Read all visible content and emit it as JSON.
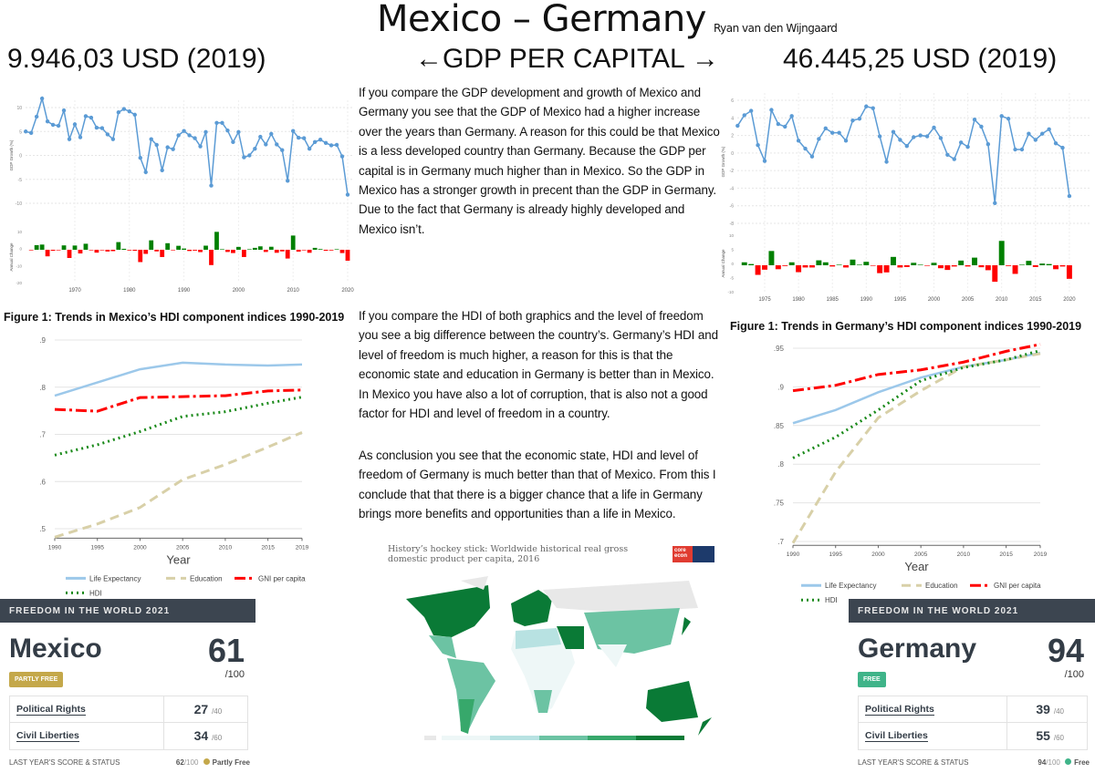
{
  "header": {
    "title": "Mexico – Germany",
    "author": "Ryan van den Wijngaard",
    "gdp_mexico": "9.946,03 USD (2019)",
    "gdp_label": "←GDP PER CAPITAL →",
    "gdp_germany": "46.445,25 USD (2019)"
  },
  "text": {
    "p1": "If you compare the GDP development and growth of Mexico and Germany you see that the GDP of Mexico had a higher increase over the years than Germany. A reason for this could be that Mexico is a less developed country than Germany. Because the GDP per capital is in Germany much higher than in Mexico. So the GDP in Mexico has a stronger growth in precent than the GDP in Germany.  Due to the fact that Germany is already highly developed and Mexico isn’t.",
    "p2": "If you compare the HDI of both graphics and the level of freedom you see a big difference between the country’s. Germany’s HDI and level of freedom is much higher, a reason for this is that the economic state and education in Germany is better than in Mexico. In Mexico you have also a lot of corruption, that is also not a good factor for HDI and level of freedom in a country.",
    "p3": "As conclusion you see that the economic state, HDI and level of freedom of Germany is much better than that of Mexico. From this I conclude that that there is a bigger chance that a life in Germany brings more benefits and opportunities than a life in Mexico."
  },
  "chart_data": [
    {
      "id": "mx-gdp",
      "type": "line",
      "ylabel": "GDP Growth (%)",
      "ylabel2": "Annual Change",
      "x_start": 1961,
      "xticks": [
        "1970",
        "1980",
        "1990",
        "2000",
        "2010",
        "2020"
      ],
      "yticks": [
        "10",
        "5",
        "0",
        "-5",
        "-10"
      ],
      "bar_yticks": [
        "10",
        "0",
        "-10",
        "-20"
      ],
      "ylim": [
        -10,
        10
      ],
      "line_color": "#5b9bd5",
      "bar_up": "#008000",
      "bar_down": "#ff0000",
      "values": [
        5.0,
        4.7,
        8.1,
        11.9,
        7.1,
        6.4,
        6.2,
        9.4,
        3.4,
        6.5,
        3.8,
        8.2,
        7.9,
        5.8,
        5.7,
        4.4,
        3.4,
        9.0,
        9.7,
        9.2,
        8.5,
        -0.5,
        -3.5,
        3.4,
        2.2,
        -3.1,
        1.7,
        1.3,
        4.2,
        5.1,
        4.2,
        3.6,
        1.9,
        4.9,
        -6.3,
        6.8,
        6.8,
        5.2,
        2.8,
        4.9,
        -0.4,
        0.0,
        1.4,
        3.9,
        2.3,
        4.5,
        2.3,
        1.1,
        -5.3,
        5.1,
        3.7,
        3.6,
        1.4,
        2.8,
        3.3,
        2.6,
        2.1,
        2.2,
        -0.2,
        -8.2
      ]
    },
    {
      "id": "de-gdp",
      "type": "line",
      "ylabel": "GDP Growth (%)",
      "ylabel2": "Annual Change",
      "x_start": 1971,
      "xticks": [
        "1975",
        "1980",
        "1985",
        "1990",
        "1995",
        "2000",
        "2005",
        "2010",
        "2015",
        "2020"
      ],
      "yticks": [
        "6",
        "4",
        "2",
        "0",
        "-2",
        "-4",
        "-6",
        "-8"
      ],
      "bar_yticks": [
        "10",
        "5",
        "0",
        "-5",
        "-10"
      ],
      "ylim": [
        -8,
        6
      ],
      "line_color": "#5b9bd5",
      "bar_up": "#008000",
      "bar_down": "#ff0000",
      "values": [
        3.1,
        4.3,
        4.8,
        0.9,
        -0.9,
        4.9,
        3.3,
        3.0,
        4.2,
        1.4,
        0.5,
        -0.4,
        1.6,
        2.8,
        2.3,
        2.3,
        1.4,
        3.7,
        3.9,
        5.3,
        5.1,
        1.9,
        -1.0,
        2.4,
        1.5,
        0.8,
        1.8,
        2.0,
        1.9,
        2.9,
        1.7,
        -0.2,
        -0.7,
        1.2,
        0.7,
        3.8,
        3.0,
        1.0,
        -5.7,
        4.2,
        3.9,
        0.4,
        0.4,
        2.2,
        1.5,
        2.2,
        2.7,
        1.1,
        0.6,
        -4.9
      ]
    },
    {
      "id": "mx-hdi",
      "type": "line",
      "title": "Figure 1: Trends in Mexico’s HDI component indices 1990-2019",
      "xlabel": "Year",
      "x": [
        1990,
        1995,
        2000,
        2005,
        2010,
        2015,
        2019
      ],
      "xticks": [
        "1990",
        "1995",
        "2000",
        "2005",
        "2010",
        "2015",
        "2019"
      ],
      "yticks": [
        ".9",
        ".8",
        ".7",
        ".6",
        ".5"
      ],
      "ylim": [
        0.48,
        0.9
      ],
      "series": [
        {
          "name": "Life Expectancy",
          "color": "#9cc8ea",
          "style": "solid",
          "values": [
            0.782,
            0.81,
            0.838,
            0.852,
            0.848,
            0.846,
            0.848
          ]
        },
        {
          "name": "Education",
          "color": "#d8d0a8",
          "style": "dash",
          "values": [
            0.482,
            0.51,
            0.545,
            0.604,
            0.636,
            0.673,
            0.704
          ]
        },
        {
          "name": "GNI per capita",
          "color": "#ff0000",
          "style": "dashdot",
          "values": [
            0.753,
            0.749,
            0.778,
            0.78,
            0.782,
            0.792,
            0.794
          ]
        },
        {
          "name": "HDI",
          "color": "#1a8a1a",
          "style": "dot",
          "values": [
            0.656,
            0.678,
            0.706,
            0.738,
            0.748,
            0.766,
            0.779
          ]
        }
      ]
    },
    {
      "id": "de-hdi",
      "type": "line",
      "title": "Figure 1: Trends in Germany’s HDI component indices 1990-2019",
      "xlabel": "Year",
      "x": [
        1990,
        1995,
        2000,
        2005,
        2010,
        2015,
        2019
      ],
      "xticks": [
        "1990",
        "1995",
        "2000",
        "2005",
        "2010",
        "2015",
        "2019"
      ],
      "yticks": [
        ".95",
        ".9",
        ".85",
        ".8",
        ".75",
        ".7"
      ],
      "ylim": [
        0.695,
        0.96
      ],
      "series": [
        {
          "name": "Life Expectancy",
          "color": "#9cc8ea",
          "style": "solid",
          "values": [
            0.853,
            0.87,
            0.893,
            0.912,
            0.926,
            0.935,
            0.944
          ]
        },
        {
          "name": "Education",
          "color": "#d8d0a8",
          "style": "dash",
          "values": [
            0.698,
            0.79,
            0.86,
            0.895,
            0.926,
            0.935,
            0.943
          ]
        },
        {
          "name": "GNI per capita",
          "color": "#ff0000",
          "style": "dashdot",
          "values": [
            0.895,
            0.902,
            0.916,
            0.922,
            0.932,
            0.946,
            0.955
          ]
        },
        {
          "name": "HDI",
          "color": "#1a8a1a",
          "style": "dot",
          "values": [
            0.808,
            0.835,
            0.87,
            0.908,
            0.925,
            0.935,
            0.947
          ]
        }
      ]
    }
  ],
  "map": {
    "title": "History’s hockey stick: Worldwide historical real gross domestic product per capita, 2016",
    "logo": "core econ",
    "scale_colors": [
      "#e8e8e8",
      "#eef7f7",
      "#b8e2e2",
      "#6cc3a3",
      "#37a86b",
      "#0a7a36"
    ]
  },
  "freedom": [
    {
      "header": "FREEDOM IN THE WORLD 2021",
      "country": "Mexico",
      "score": "61",
      "per": "/100",
      "status": "PARTLY FREE",
      "status_color": "#c4a84a",
      "rows": [
        {
          "label": "Political Rights",
          "score": "27",
          "max": "/40"
        },
        {
          "label": "Civil Liberties",
          "score": "34",
          "max": "/60"
        }
      ],
      "last_label": "LAST YEAR'S SCORE & STATUS",
      "last_score": "62",
      "last_max": "/100",
      "last_status": "Partly Free"
    },
    {
      "header": "FREEDOM IN THE WORLD 2021",
      "country": "Germany",
      "score": "94",
      "per": "/100",
      "status": "FREE",
      "status_color": "#3fb489",
      "rows": [
        {
          "label": "Political Rights",
          "score": "39",
          "max": "/40"
        },
        {
          "label": "Civil Liberties",
          "score": "55",
          "max": "/60"
        }
      ],
      "last_label": "LAST YEAR'S SCORE & STATUS",
      "last_score": "94",
      "last_max": "/100",
      "last_status": "Free"
    }
  ]
}
